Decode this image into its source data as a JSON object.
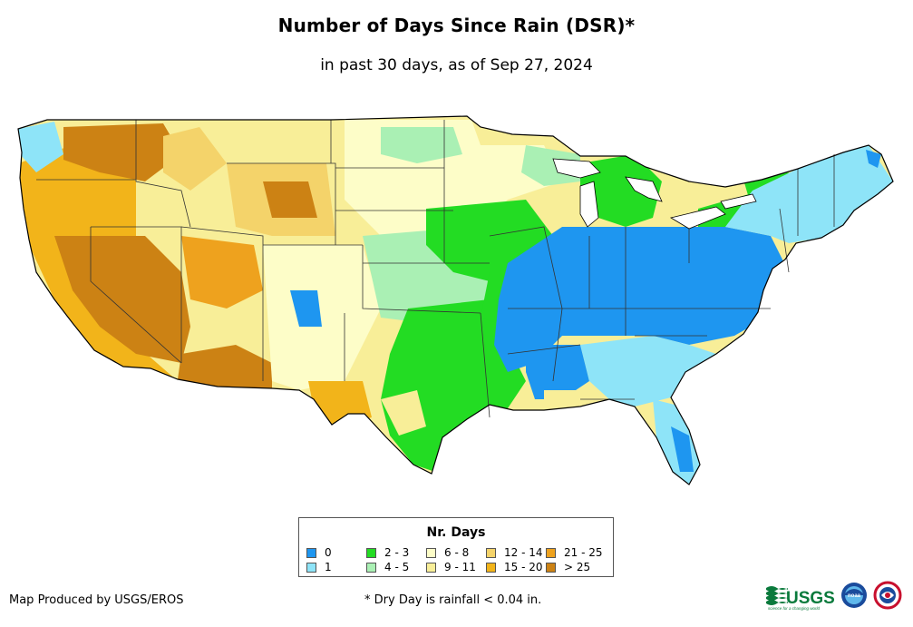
{
  "title": "Number of Days Since Rain (DSR)*",
  "subtitle": "in past 30 days, as of Sep 27, 2024",
  "legend": {
    "title": "Nr. Days",
    "items": [
      {
        "label": "0",
        "color": "#1e96f0"
      },
      {
        "label": "1",
        "color": "#8ee4f8"
      },
      {
        "label": "2 - 3",
        "color": "#23dc23"
      },
      {
        "label": "4 - 5",
        "color": "#aaf0b4"
      },
      {
        "label": "6 - 8",
        "color": "#fdfdc8"
      },
      {
        "label": "9 - 11",
        "color": "#f8ee98"
      },
      {
        "label": "12 - 14",
        "color": "#f4d36a"
      },
      {
        "label": "15 - 20",
        "color": "#f2b41a"
      },
      {
        "label": "21 - 25",
        "color": "#eea21e"
      },
      {
        "label": "> 25",
        "color": "#cc8214"
      }
    ]
  },
  "credit": "Map Produced by USGS/EROS",
  "footnote": "* Dry Day is rainfall < 0.04 in.",
  "logos": {
    "usgs_text": "USGS",
    "usgs_tagline": "science for a changing world",
    "noaa_text": "noaa"
  },
  "map": {
    "border_color": "#000000",
    "state_line_color": "#333333"
  }
}
